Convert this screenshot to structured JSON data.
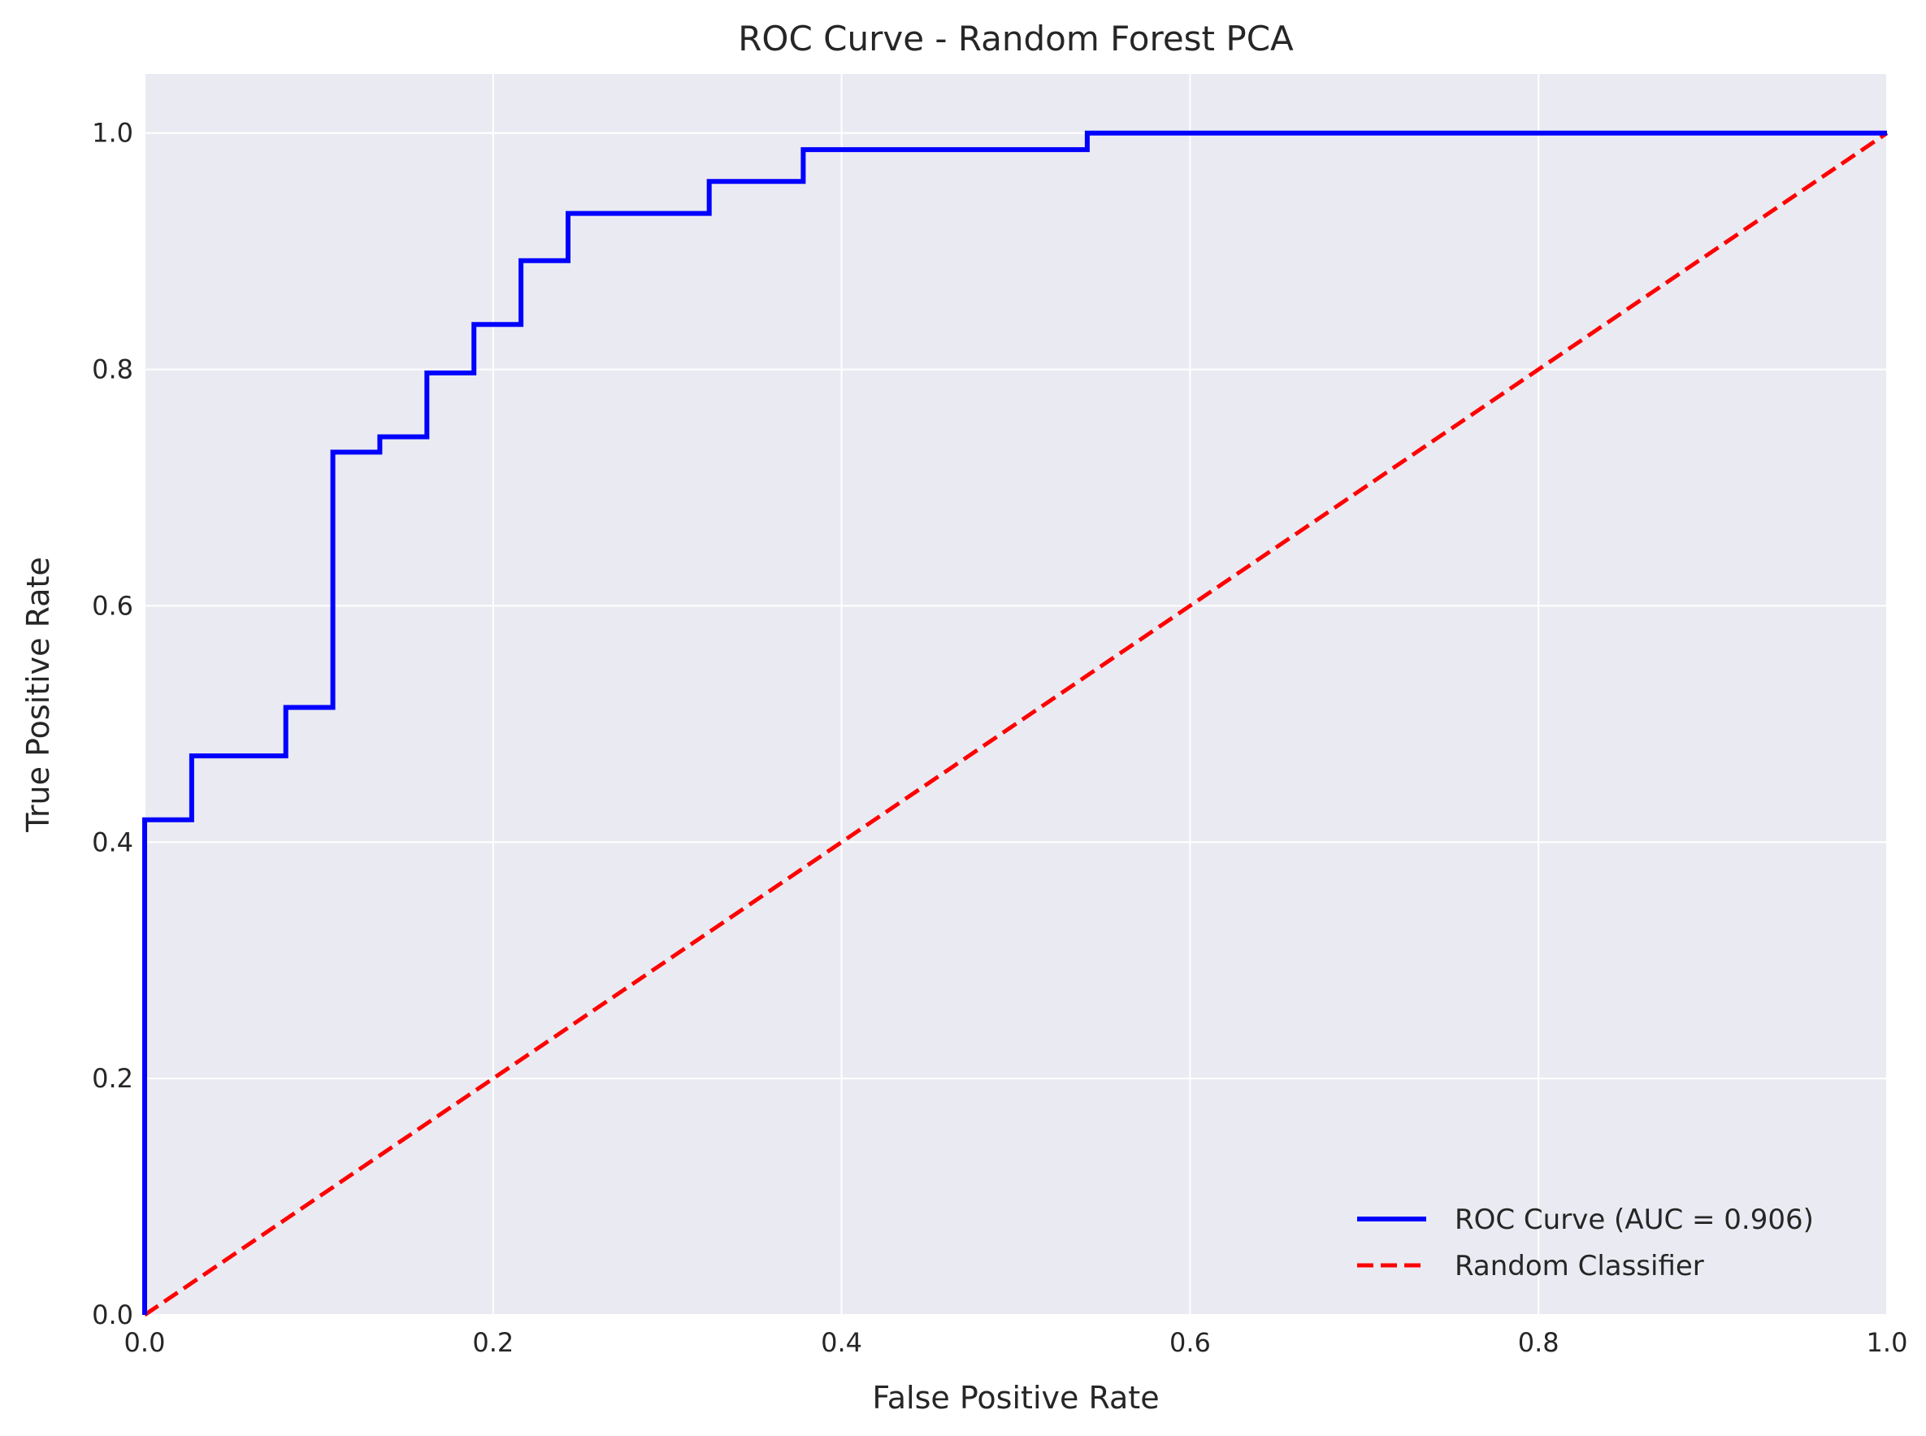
{
  "chart_data": {
    "type": "line",
    "title": "ROC Curve - Random Forest PCA",
    "xlabel": "False Positive Rate",
    "ylabel": "True Positive Rate",
    "xlim": [
      0.0,
      1.0
    ],
    "ylim": [
      0.0,
      1.05
    ],
    "xticks": [
      "0.0",
      "0.2",
      "0.4",
      "0.6",
      "0.8",
      "1.0"
    ],
    "yticks": [
      "0.0",
      "0.2",
      "0.4",
      "0.6",
      "0.8",
      "1.0"
    ],
    "grid": true,
    "legend_position": "lower-right",
    "series": [
      {
        "name": "ROC Curve (AUC = 0.906)",
        "color": "#0000ff",
        "style": "solid",
        "x": [
          0.0,
          0.0,
          0.027,
          0.027,
          0.081,
          0.081,
          0.108,
          0.108,
          0.135,
          0.135,
          0.162,
          0.162,
          0.189,
          0.189,
          0.216,
          0.216,
          0.243,
          0.243,
          0.324,
          0.324,
          0.378,
          0.378,
          0.541,
          0.541,
          1.0
        ],
        "y": [
          0.0,
          0.419,
          0.419,
          0.473,
          0.473,
          0.514,
          0.514,
          0.73,
          0.73,
          0.743,
          0.743,
          0.797,
          0.797,
          0.838,
          0.838,
          0.892,
          0.892,
          0.932,
          0.932,
          0.959,
          0.959,
          0.986,
          0.986,
          1.0,
          1.0
        ]
      },
      {
        "name": "Random Classifier",
        "color": "#ff0000",
        "style": "dashed",
        "x": [
          0.0,
          1.0
        ],
        "y": [
          0.0,
          1.0
        ]
      }
    ]
  }
}
